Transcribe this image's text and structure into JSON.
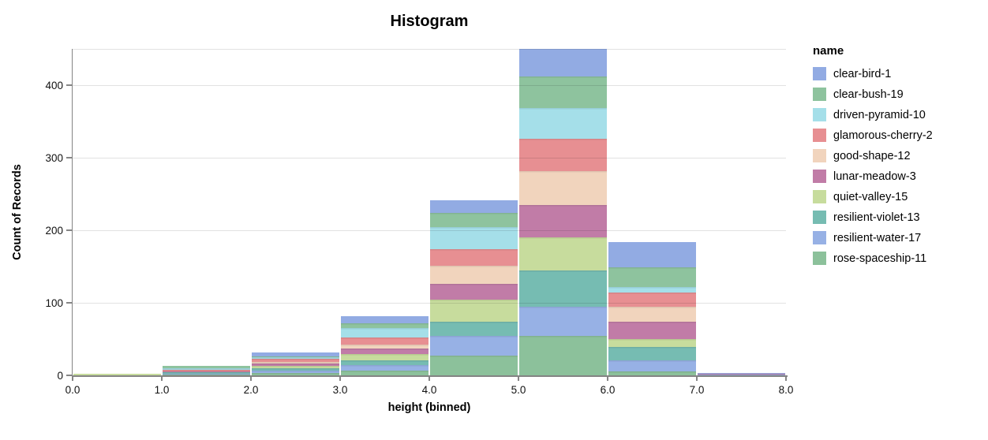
{
  "chart_data": {
    "type": "bar",
    "stacked": true,
    "title": "Histogram",
    "xlabel": "height (binned)",
    "ylabel": "Count of Records",
    "legend_title": "name",
    "legend_position": "right",
    "grid": true,
    "ylim": [
      0,
      450
    ],
    "y_ticks": [
      0,
      100,
      200,
      300,
      400
    ],
    "y_gridlines": [
      100,
      200,
      300,
      400,
      450
    ],
    "x_ticks": [
      "0.0",
      "1.0",
      "2.0",
      "3.0",
      "4.0",
      "5.0",
      "6.0",
      "7.0",
      "8.0"
    ],
    "bins": [
      "0.0-1.0",
      "1.0-2.0",
      "2.0-3.0",
      "3.0-4.0",
      "4.0-5.0",
      "5.0-6.0",
      "6.0-7.0",
      "7.0-8.0"
    ],
    "stack_order": "bottom-to-top is reverse of series list (rose-spaceship-11 at bottom, clear-bird-1 on top)",
    "series": [
      {
        "name": "clear-bird-1",
        "color": "#92abe3",
        "values": [
          0,
          0,
          5,
          9,
          17,
          38,
          35,
          1
        ]
      },
      {
        "name": "clear-bush-19",
        "color": "#8ec39e",
        "values": [
          0,
          3,
          1,
          7,
          20,
          43,
          27,
          0
        ]
      },
      {
        "name": "driven-pyramid-10",
        "color": "#a5dfe9",
        "values": [
          0,
          2,
          2,
          13,
          30,
          43,
          8,
          0
        ]
      },
      {
        "name": "glamorous-cherry-2",
        "color": "#e78f92",
        "values": [
          0,
          3,
          4,
          10,
          23,
          44,
          19,
          0
        ]
      },
      {
        "name": "good-shape-12",
        "color": "#f1d4bd",
        "values": [
          0,
          0,
          3,
          5,
          25,
          47,
          21,
          0
        ]
      },
      {
        "name": "lunar-meadow-3",
        "color": "#c17ca7",
        "values": [
          0,
          1,
          3,
          8,
          22,
          45,
          24,
          1
        ]
      },
      {
        "name": "quiet-valley-15",
        "color": "#c7dc9d",
        "values": [
          2,
          0,
          3,
          8,
          30,
          45,
          11,
          0
        ]
      },
      {
        "name": "resilient-violet-13",
        "color": "#76bcb2",
        "values": [
          0,
          2,
          3,
          7,
          20,
          50,
          18,
          0
        ]
      },
      {
        "name": "resilient-water-17",
        "color": "#97b1e5",
        "values": [
          0,
          1,
          4,
          7,
          27,
          41,
          16,
          1
        ]
      },
      {
        "name": "rose-spaceship-11",
        "color": "#8cc19b",
        "values": [
          0,
          1,
          3,
          7,
          27,
          54,
          5,
          0
        ]
      }
    ],
    "bin_totals": [
      2,
      13,
      31,
      81,
      241,
      450,
      184,
      3
    ]
  }
}
